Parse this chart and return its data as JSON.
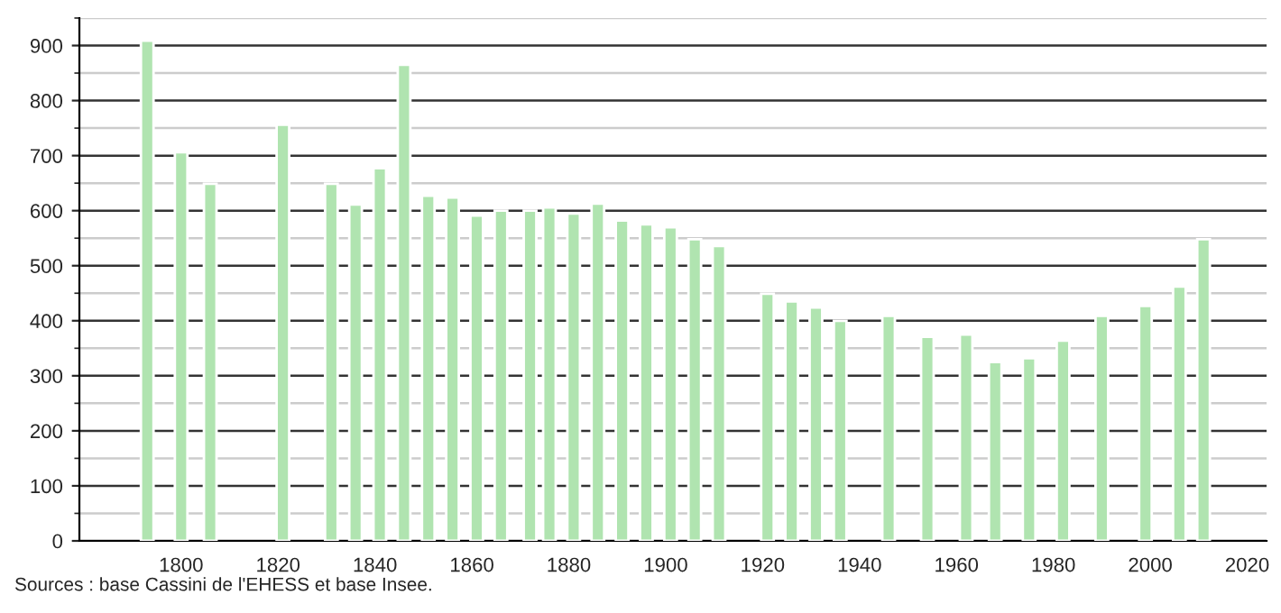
{
  "chart_data": {
    "type": "bar",
    "x": [
      1793,
      1800,
      1806,
      1821,
      1831,
      1836,
      1841,
      1846,
      1851,
      1856,
      1861,
      1866,
      1872,
      1876,
      1881,
      1886,
      1891,
      1896,
      1901,
      1906,
      1911,
      1921,
      1926,
      1931,
      1936,
      1946,
      1954,
      1962,
      1968,
      1975,
      1982,
      1990,
      1999,
      2006,
      2011
    ],
    "values": [
      909,
      706,
      649,
      756,
      649,
      611,
      677,
      865,
      627,
      624,
      591,
      600,
      600,
      606,
      595,
      613,
      582,
      575,
      570,
      548,
      536,
      449,
      435,
      424,
      400,
      409,
      371,
      375,
      325,
      332,
      364,
      409,
      427,
      462,
      548
    ],
    "color": "#b0e4b0",
    "xlim": [
      1779,
      2024
    ],
    "xticks": [
      1800,
      1820,
      1840,
      1860,
      1880,
      1900,
      1920,
      1940,
      1960,
      1980,
      2000,
      2020
    ],
    "ylim": [
      0,
      950
    ],
    "yticks": [
      0,
      100,
      200,
      300,
      400,
      500,
      600,
      700,
      800,
      900
    ],
    "grid": "y",
    "annotations": [
      "Sources : base Cassini de l'EHESS et base Insee."
    ]
  }
}
